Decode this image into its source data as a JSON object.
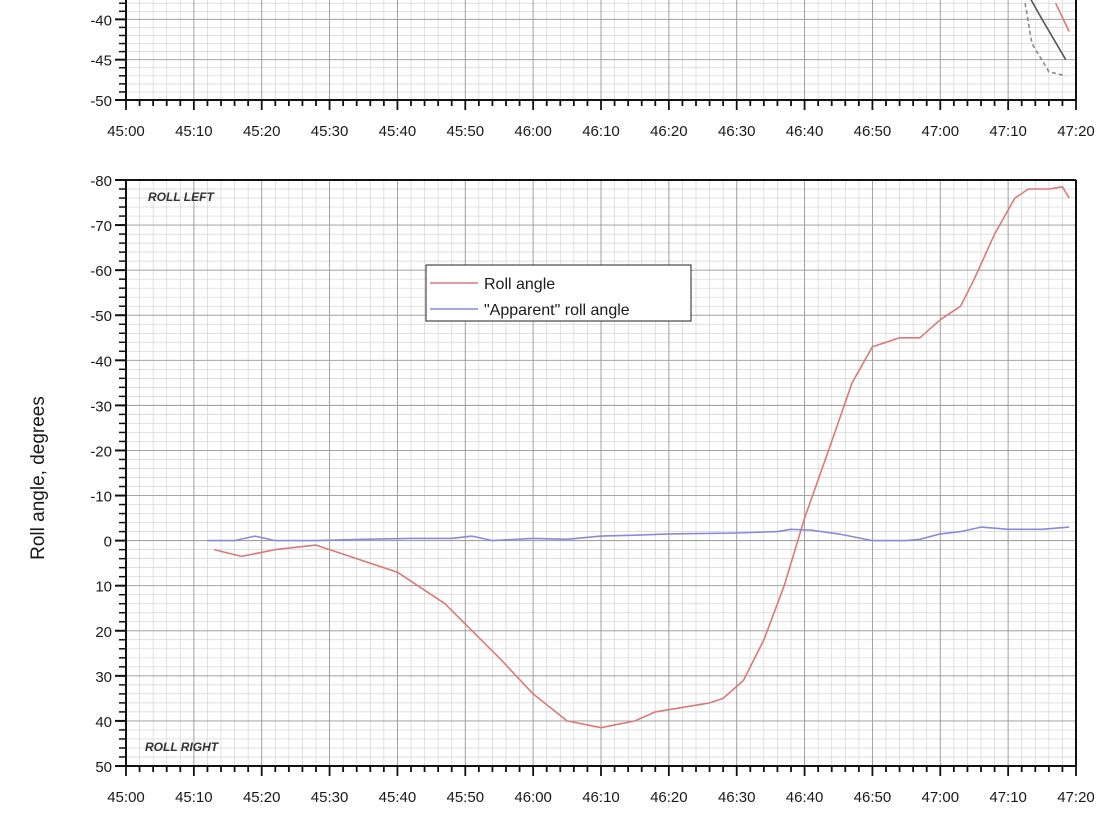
{
  "chart_data": [
    {
      "type": "line",
      "partial": true,
      "x_ticks": [
        "45:00",
        "45:10",
        "45:20",
        "45:30",
        "45:40",
        "45:50",
        "46:00",
        "46:10",
        "46:20",
        "46:30",
        "46:40",
        "46:50",
        "47:00",
        "47:10",
        "47:20"
      ],
      "xlim": [
        "45:00",
        "47:20"
      ],
      "y_ticks": [
        "-40",
        "-45",
        "-50"
      ],
      "series": [
        {
          "style": "solid",
          "color": "#555555",
          "x": [
            "47:13",
            "47:15",
            "47:18.5"
          ],
          "y": [
            -37,
            -40,
            -45
          ]
        },
        {
          "style": "dashed",
          "color": "#888888",
          "x": [
            "47:12.5",
            "47:13.5",
            "47:16",
            "47:18.5"
          ],
          "y": [
            -38,
            -43,
            -46.5,
            -47
          ]
        },
        {
          "style": "solid",
          "color": "#d97a7a",
          "x": [
            "47:17",
            "47:19"
          ],
          "y": [
            -38,
            -41.5
          ]
        }
      ]
    },
    {
      "type": "line",
      "xlabel": "",
      "ylabel": "Roll angle, degrees",
      "xlim": [
        "45:00",
        "47:20"
      ],
      "ylim": [
        50,
        -80
      ],
      "y_inverted": true,
      "x_ticks": [
        "45:00",
        "45:10",
        "45:20",
        "45:30",
        "45:40",
        "45:50",
        "46:00",
        "46:10",
        "46:20",
        "46:30",
        "46:40",
        "46:50",
        "47:00",
        "47:10",
        "47:20"
      ],
      "y_ticks": [
        "-80",
        "-70",
        "-60",
        "-50",
        "-40",
        "-30",
        "-20",
        "-10",
        "0",
        "10",
        "20",
        "30",
        "40",
        "50"
      ],
      "grid": true,
      "legend_position": "upper-center",
      "annotations": [
        "ROLL LEFT",
        "ROLL RIGHT"
      ],
      "series": [
        {
          "name": "Roll angle",
          "color": "#d97a7a",
          "x": [
            "45:13",
            "45:17",
            "45:22",
            "45:28",
            "45:32",
            "45:36",
            "45:40",
            "45:43",
            "45:47",
            "45:51",
            "45:55",
            "46:00",
            "46:05",
            "46:10",
            "46:15",
            "46:18",
            "46:22",
            "46:26",
            "46:28",
            "46:31",
            "46:34",
            "46:37",
            "46:40",
            "46:44",
            "46:47",
            "46:50",
            "46:54",
            "46:57",
            "47:00",
            "47:03",
            "47:05",
            "47:08",
            "47:11",
            "47:13",
            "47:16",
            "47:18",
            "47:19"
          ],
          "y": [
            2,
            3.5,
            2,
            1,
            3,
            5,
            7,
            10,
            14,
            20,
            26,
            34,
            40,
            41.5,
            40,
            38,
            37,
            36,
            35,
            31,
            22,
            10,
            -5,
            -22,
            -35,
            -43,
            -45,
            -45,
            -49,
            -52,
            -58,
            -68,
            -76,
            -78,
            -78,
            -78.5,
            -76
          ]
        },
        {
          "name": "\"Apparent\" roll angle",
          "color": "#8a8ad8",
          "x": [
            "45:12",
            "45:16",
            "45:19",
            "45:22",
            "45:28",
            "45:35",
            "45:42",
            "45:48",
            "45:51",
            "45:54",
            "46:00",
            "46:05",
            "46:10",
            "46:15",
            "46:20",
            "46:30",
            "46:36",
            "46:38",
            "46:41",
            "46:45",
            "46:50",
            "46:55",
            "46:57",
            "47:00",
            "47:03",
            "47:06",
            "47:10",
            "47:15",
            "47:19"
          ],
          "y": [
            0,
            0,
            -1,
            0,
            0,
            -0.3,
            -0.5,
            -0.5,
            -1,
            0,
            -0.5,
            -0.3,
            -1,
            -1.2,
            -1.5,
            -1.7,
            -2,
            -2.5,
            -2.3,
            -1.5,
            0,
            0,
            -0.3,
            -1.5,
            -2,
            -3,
            -2.5,
            -2.5,
            -3
          ]
        }
      ]
    }
  ]
}
